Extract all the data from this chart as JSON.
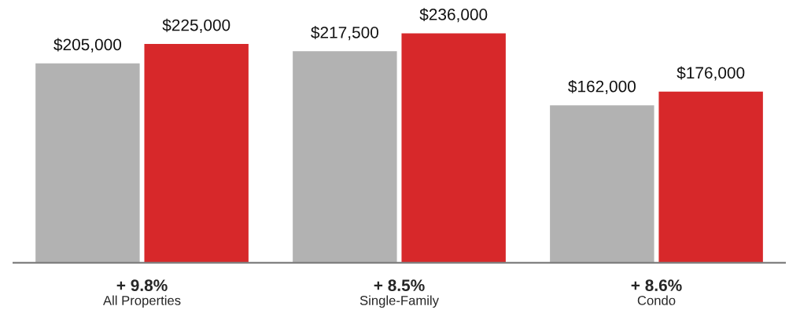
{
  "chart_data": {
    "type": "bar",
    "categories": [
      "All Properties",
      "Single-Family",
      "Condo"
    ],
    "series": [
      {
        "color": "#b2b2b2",
        "values": [
          205000,
          217500,
          162000
        ],
        "value_labels": [
          "$205,000",
          "$217,500",
          "$162,000"
        ]
      },
      {
        "color": "#d7282a",
        "values": [
          225000,
          236000,
          176000
        ],
        "value_labels": [
          "$225,000",
          "$236,000",
          "$176,000"
        ]
      }
    ],
    "annotations": [
      "+ 9.8%",
      "+ 8.5%",
      "+ 8.6%"
    ]
  }
}
